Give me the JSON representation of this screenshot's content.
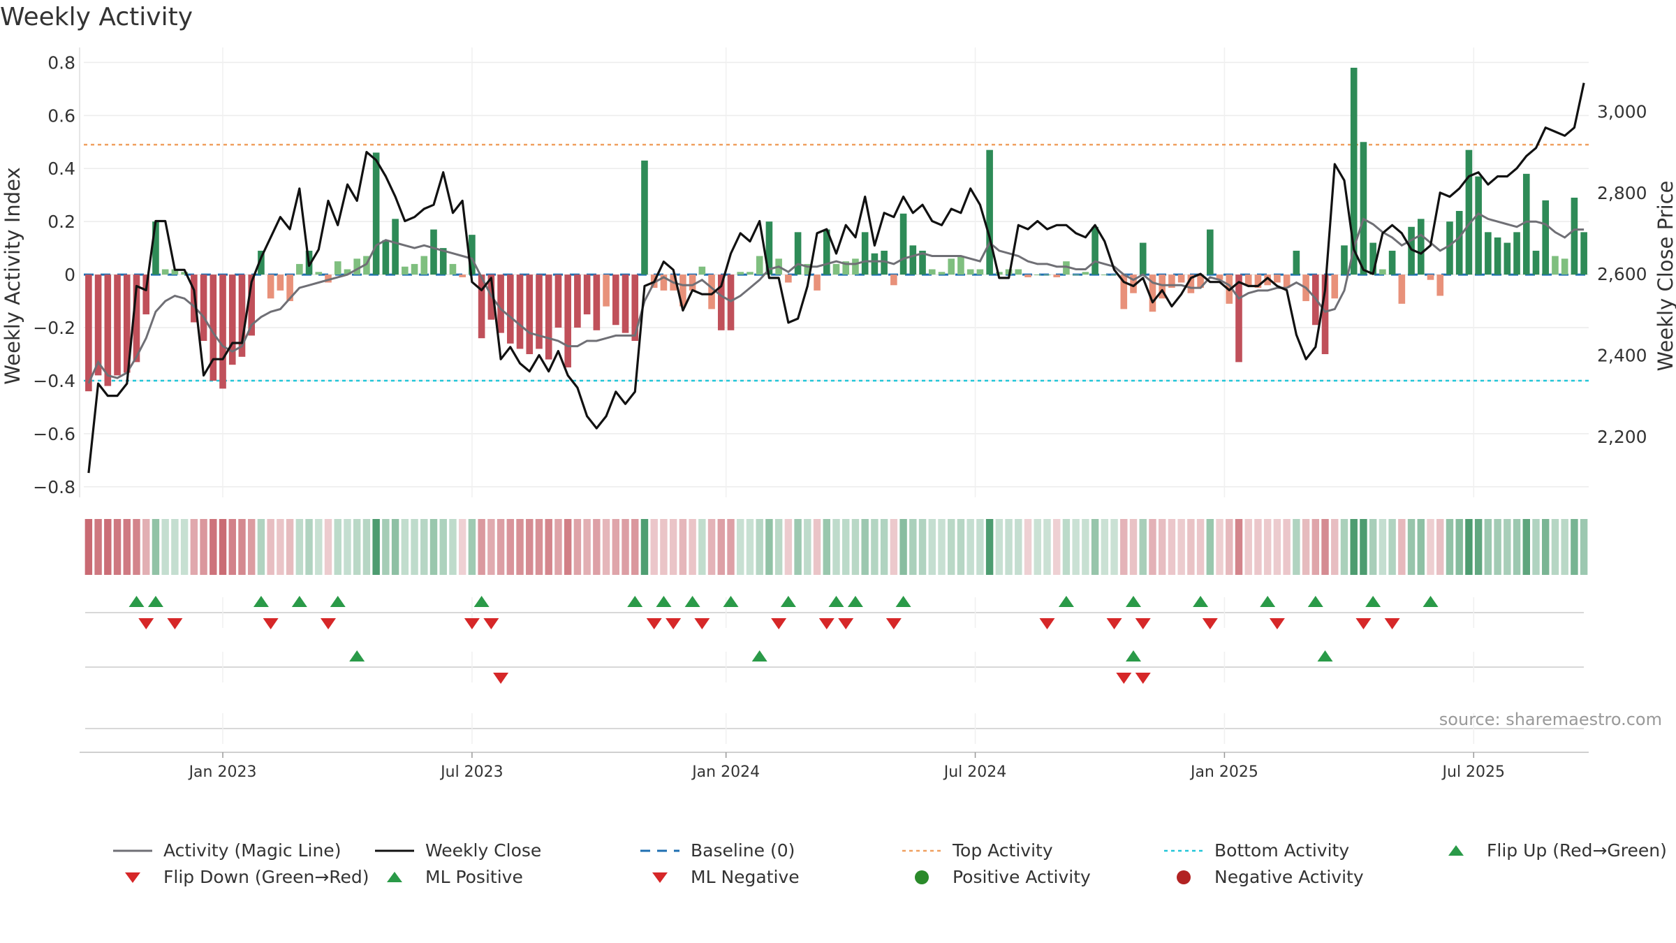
{
  "page": {
    "title": "Weekly Activity"
  },
  "chart_data": {
    "type": "bar",
    "title": "Weekly Activity",
    "ylabel_left": "Weekly Activity Index",
    "ylabel_right": "Weekly Close Price",
    "ylim_left": [
      -0.84,
      0.83
    ],
    "ylim_right": [
      2050,
      3140
    ],
    "yticks_left": [
      0.8,
      0.6,
      0.4,
      0.2,
      0,
      -0.2,
      -0.4,
      -0.6,
      -0.8
    ],
    "yticks_left_labels": [
      "0.8",
      "0.6",
      "0.4",
      "0.2",
      "0",
      "−0.2",
      "−0.4",
      "−0.6",
      "−0.8"
    ],
    "yticks_right": [
      2200,
      2400,
      2600,
      2800,
      3000
    ],
    "yticks_right_labels": [
      "2,200",
      "2,400",
      "2,600",
      "2,800",
      "3,000"
    ],
    "x_weeks": 157,
    "x_ticks": [
      {
        "week": 14,
        "label": "Jan 2023"
      },
      {
        "week": 40,
        "label": "Jul 2023"
      },
      {
        "week": 66.5,
        "label": "Jan 2024"
      },
      {
        "week": 92.5,
        "label": "Jul 2024"
      },
      {
        "week": 118.5,
        "label": "Jan 2025"
      },
      {
        "week": 144.5,
        "label": "Jul 2025"
      }
    ],
    "activity": [
      -0.44,
      -0.38,
      -0.42,
      -0.38,
      -0.37,
      -0.33,
      -0.15,
      0.2,
      0.02,
      0.02,
      0.01,
      -0.18,
      -0.25,
      -0.4,
      -0.43,
      -0.34,
      -0.31,
      -0.23,
      0.09,
      -0.09,
      -0.06,
      -0.1,
      0.04,
      0.09,
      0.01,
      -0.03,
      0.05,
      0.02,
      0.06,
      0.07,
      0.46,
      0.13,
      0.21,
      0.03,
      0.04,
      0.07,
      0.17,
      0.1,
      0.04,
      -0.01,
      0.15,
      -0.24,
      -0.17,
      -0.22,
      -0.26,
      -0.28,
      -0.3,
      -0.28,
      -0.32,
      -0.2,
      -0.35,
      -0.2,
      -0.15,
      -0.21,
      -0.12,
      -0.19,
      -0.22,
      -0.25,
      0.43,
      -0.05,
      -0.06,
      -0.06,
      -0.12,
      -0.06,
      0.03,
      -0.13,
      -0.21,
      -0.21,
      0.01,
      0.01,
      0.07,
      0.2,
      0.06,
      -0.03,
      0.16,
      0.04,
      -0.06,
      0.17,
      0.04,
      0.05,
      0.06,
      0.16,
      0.08,
      0.09,
      -0.04,
      0.23,
      0.11,
      0.09,
      0.02,
      0.01,
      0.06,
      0.07,
      0.02,
      0.02,
      0.47,
      0.01,
      0.02,
      0.02,
      -0.01,
      0.0,
      0.0,
      -0.01,
      0.05,
      0.0,
      0.01,
      0.18,
      0.0,
      0.0,
      -0.13,
      -0.07,
      0.12,
      -0.14,
      -0.09,
      -0.05,
      -0.03,
      -0.07,
      -0.05,
      0.17,
      -0.02,
      -0.11,
      -0.33,
      -0.04,
      -0.05,
      -0.04,
      -0.03,
      -0.05,
      0.09,
      -0.1,
      -0.19,
      -0.3,
      -0.09,
      0.11,
      0.78,
      0.5,
      0.12,
      0.02,
      0.09,
      -0.11,
      0.18,
      0.21,
      -0.02,
      -0.08,
      0.2,
      0.24,
      0.47,
      0.37,
      0.16,
      0.14,
      0.12,
      0.16,
      0.38,
      0.09,
      0.28,
      0.07,
      0.06,
      0.29,
      0.16
    ],
    "magic_line": [
      -0.41,
      -0.33,
      -0.38,
      -0.39,
      -0.37,
      -0.31,
      -0.24,
      -0.14,
      -0.1,
      -0.08,
      -0.09,
      -0.12,
      -0.16,
      -0.22,
      -0.27,
      -0.29,
      -0.27,
      -0.19,
      -0.16,
      -0.14,
      -0.13,
      -0.09,
      -0.05,
      -0.04,
      -0.03,
      -0.02,
      -0.01,
      0.0,
      0.02,
      0.04,
      0.11,
      0.13,
      0.12,
      0.11,
      0.1,
      0.11,
      0.1,
      0.09,
      0.08,
      0.07,
      0.06,
      -0.01,
      -0.08,
      -0.13,
      -0.16,
      -0.19,
      -0.22,
      -0.23,
      -0.24,
      -0.25,
      -0.27,
      -0.27,
      -0.25,
      -0.25,
      -0.24,
      -0.23,
      -0.23,
      -0.23,
      -0.1,
      -0.03,
      -0.01,
      -0.03,
      -0.04,
      -0.04,
      -0.02,
      -0.05,
      -0.08,
      -0.1,
      -0.08,
      -0.05,
      -0.02,
      0.02,
      0.03,
      0.01,
      0.04,
      0.03,
      0.03,
      0.04,
      0.05,
      0.04,
      0.04,
      0.05,
      0.05,
      0.05,
      0.04,
      0.06,
      0.07,
      0.08,
      0.07,
      0.07,
      0.07,
      0.07,
      0.06,
      0.05,
      0.12,
      0.09,
      0.08,
      0.07,
      0.05,
      0.04,
      0.04,
      0.03,
      0.03,
      0.02,
      0.02,
      0.05,
      0.04,
      0.03,
      0.0,
      -0.02,
      0.0,
      -0.03,
      -0.04,
      -0.04,
      -0.04,
      -0.05,
      -0.05,
      -0.01,
      -0.02,
      -0.04,
      -0.09,
      -0.07,
      -0.06,
      -0.06,
      -0.05,
      -0.05,
      -0.03,
      -0.05,
      -0.09,
      -0.14,
      -0.13,
      -0.06,
      0.1,
      0.21,
      0.19,
      0.16,
      0.14,
      0.11,
      0.13,
      0.15,
      0.12,
      0.09,
      0.11,
      0.14,
      0.19,
      0.23,
      0.21,
      0.2,
      0.19,
      0.18,
      0.2,
      0.2,
      0.19,
      0.16,
      0.14,
      0.17,
      0.17
    ],
    "weekly_close": [
      2110,
      2330,
      2300,
      2300,
      2330,
      2570,
      2560,
      2730,
      2730,
      2610,
      2610,
      2560,
      2350,
      2390,
      2390,
      2430,
      2430,
      2580,
      2640,
      2690,
      2740,
      2710,
      2810,
      2620,
      2660,
      2780,
      2720,
      2820,
      2780,
      2900,
      2880,
      2840,
      2790,
      2730,
      2740,
      2760,
      2770,
      2850,
      2750,
      2780,
      2580,
      2560,
      2590,
      2390,
      2420,
      2380,
      2360,
      2400,
      2360,
      2410,
      2350,
      2320,
      2250,
      2220,
      2250,
      2310,
      2280,
      2310,
      2570,
      2580,
      2630,
      2610,
      2510,
      2560,
      2550,
      2550,
      2570,
      2650,
      2700,
      2680,
      2730,
      2590,
      2590,
      2480,
      2490,
      2570,
      2700,
      2710,
      2650,
      2720,
      2690,
      2790,
      2670,
      2750,
      2740,
      2790,
      2750,
      2770,
      2730,
      2720,
      2760,
      2750,
      2810,
      2770,
      2690,
      2590,
      2590,
      2720,
      2710,
      2730,
      2710,
      2720,
      2720,
      2700,
      2690,
      2720,
      2680,
      2610,
      2580,
      2570,
      2590,
      2530,
      2560,
      2520,
      2550,
      2590,
      2600,
      2580,
      2580,
      2560,
      2580,
      2570,
      2570,
      2590,
      2570,
      2560,
      2450,
      2390,
      2420,
      2560,
      2870,
      2830,
      2660,
      2610,
      2600,
      2700,
      2720,
      2700,
      2660,
      2650,
      2670,
      2800,
      2790,
      2810,
      2840,
      2850,
      2820,
      2840,
      2840,
      2860,
      2890,
      2910,
      2960,
      2950,
      2940,
      2960,
      3070
    ],
    "bottom_strip_intensity": "mirrors activity per week",
    "flip_up_weeks": [
      5,
      7,
      18,
      22,
      26,
      41,
      57,
      60,
      63,
      67,
      73,
      78,
      80,
      85,
      102,
      109,
      116,
      123,
      128,
      134,
      140
    ],
    "flip_down_weeks": [
      6,
      9,
      19,
      25,
      40,
      42,
      59,
      61,
      64,
      72,
      77,
      79,
      84,
      100,
      107,
      110,
      117,
      124,
      133,
      136
    ],
    "ml_positive_weeks": [
      28,
      70,
      109,
      129
    ],
    "ml_negative_weeks": [
      43,
      108,
      110
    ],
    "positive_activity_weeks": [],
    "negative_activity_weeks": [],
    "reference_lines": {
      "top_activity": 0.49,
      "bottom_activity": -0.4,
      "baseline": 0
    },
    "annotation": "source: sharemaestro.com",
    "legend": [
      {
        "key": "magic",
        "label": "Activity (Magic Line)"
      },
      {
        "key": "close",
        "label": "Weekly Close"
      },
      {
        "key": "baseline",
        "label": "Baseline (0)"
      },
      {
        "key": "top",
        "label": "Top Activity"
      },
      {
        "key": "bottom",
        "label": "Bottom Activity"
      },
      {
        "key": "flipup",
        "label": "Flip Up (Red→Green)"
      },
      {
        "key": "flipdown",
        "label": "Flip Down (Green→Red)"
      },
      {
        "key": "mlpos",
        "label": "ML Positive"
      },
      {
        "key": "mlneg",
        "label": "ML Negative"
      },
      {
        "key": "posact",
        "label": "Positive Activity"
      },
      {
        "key": "negact",
        "label": "Negative Activity"
      }
    ],
    "colors": {
      "green_dark": "#2e8b57",
      "green_light": "#7fbf7f",
      "red_dark": "#c0505a",
      "red_light": "#e8917a",
      "magic": "#6f6f75",
      "close": "#111111",
      "baseline": "#1f6fb2",
      "top": "#f0a060",
      "bottom": "#22c6d8",
      "marker_green": "#2a9a48",
      "marker_red": "#d62728",
      "pos_dot": "#2a8a2a",
      "neg_dot": "#b22222"
    }
  }
}
